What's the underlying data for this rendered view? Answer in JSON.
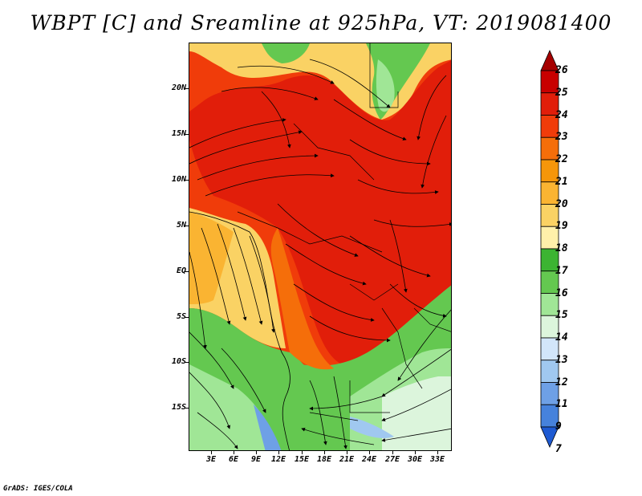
{
  "title": "WBPT [C] and Sreamline at 925hPa, VT: 2019081400",
  "credit": "GrADS: IGES/COLA",
  "map": {
    "lon_range": [
      0,
      35
    ],
    "lat_range": [
      -20,
      24
    ],
    "lat_ticks": [
      {
        "value": 20,
        "label": "20N"
      },
      {
        "value": 15,
        "label": "15N"
      },
      {
        "value": 10,
        "label": "10N"
      },
      {
        "value": 5,
        "label": "5N"
      },
      {
        "value": 0,
        "label": "EQ"
      },
      {
        "value": -5,
        "label": "5S"
      },
      {
        "value": -10,
        "label": "10S"
      },
      {
        "value": -15,
        "label": "15S"
      }
    ],
    "lon_ticks": [
      {
        "value": 3,
        "label": "3E"
      },
      {
        "value": 6,
        "label": "6E"
      },
      {
        "value": 9,
        "label": "9E"
      },
      {
        "value": 12,
        "label": "12E"
      },
      {
        "value": 15,
        "label": "15E"
      },
      {
        "value": 18,
        "label": "18E"
      },
      {
        "value": 21,
        "label": "21E"
      },
      {
        "value": 24,
        "label": "24E"
      },
      {
        "value": 27,
        "label": "27E"
      },
      {
        "value": 30,
        "label": "30E"
      },
      {
        "value": 33,
        "label": "33E"
      }
    ]
  },
  "colorbar": {
    "levels": [
      "26",
      "25",
      "24",
      "23",
      "22",
      "21",
      "20",
      "19",
      "18",
      "17",
      "16",
      "15",
      "14",
      "13",
      "12",
      "11",
      "9",
      "7"
    ],
    "colors": [
      "#a50000",
      "#c80000",
      "#e11e0a",
      "#f03c0a",
      "#f56e0a",
      "#f5960a",
      "#fab432",
      "#fad264",
      "#fff0aa",
      "#3cb432",
      "#64c850",
      "#a0e696",
      "#dcf5dc",
      "#d2e6fa",
      "#a0c8f0",
      "#6ea0e6",
      "#4682dc",
      "#1e5ad2"
    ]
  }
}
